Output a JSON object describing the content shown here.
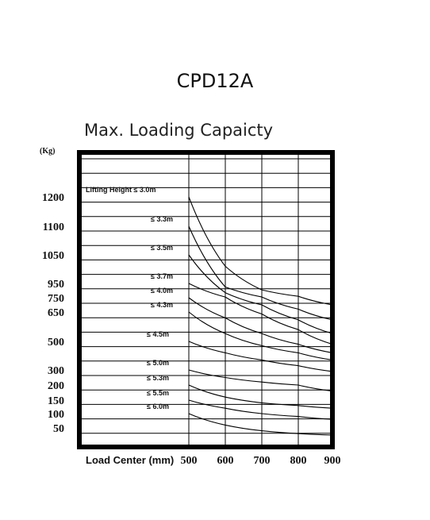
{
  "model": "CPD12A",
  "chart_data": {
    "type": "line",
    "title": "Max. Loading Capaicty",
    "y_unit": "(Kg)",
    "xlabel": "Load Center (mm)",
    "x": [
      500,
      600,
      700,
      800,
      900
    ],
    "y_ticks": [
      1200,
      1100,
      1050,
      950,
      750,
      650,
      500,
      300,
      200,
      150,
      100,
      50
    ],
    "grid": true,
    "series": [
      {
        "name": "Lifting Height ≤ 3.0m",
        "values": [
          1200,
          1010,
          860,
          770,
          700
        ]
      },
      {
        "name": "≤ 3.3m",
        "values": [
          1100,
          900,
          760,
          670,
          610
        ]
      },
      {
        "name": "≤ 3.5m",
        "values": [
          1050,
          820,
          700,
          610,
          540
        ]
      },
      {
        "name": "≤ 3.7m",
        "values": [
          950,
          760,
          640,
          560,
          480
        ]
      },
      {
        "name": "≤ 4.0m",
        "values": [
          750,
          620,
          540,
          480,
          420
        ]
      },
      {
        "name": "≤ 4.3m",
        "values": [
          650,
          540,
          470,
          420,
          370
        ]
      },
      {
        "name": "≤ 4.5m",
        "values": [
          500,
          420,
          370,
          330,
          290
        ]
      },
      {
        "name": "≤ 5.0m",
        "values": [
          300,
          250,
          220,
          200,
          180
        ]
      },
      {
        "name": "≤ 5.3m",
        "values": [
          200,
          160,
          140,
          130,
          120
        ]
      },
      {
        "name": "≤ 5.5m",
        "values": [
          150,
          120,
          100,
          90,
          80
        ]
      },
      {
        "name": "≤ 6.0m",
        "values": [
          100,
          60,
          40,
          30,
          25
        ]
      }
    ]
  }
}
